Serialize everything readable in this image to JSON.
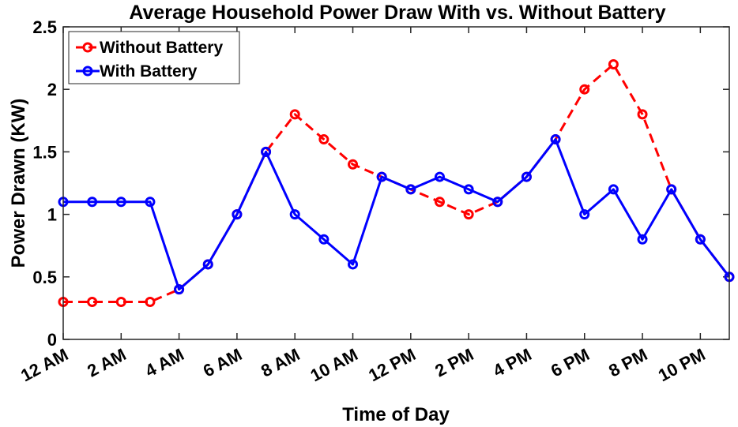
{
  "chart_data": {
    "type": "line",
    "title": "Average Household Power Draw With vs. Without Battery",
    "xlabel": "Time of Day",
    "ylabel": "Power Drawn (KW)",
    "ylim": [
      0,
      2.5
    ],
    "xlim": [
      0,
      23
    ],
    "yticks": [
      "0",
      "0.5",
      "1",
      "1.5",
      "2",
      "2.5"
    ],
    "xtick_positions": [
      0,
      2,
      4,
      6,
      8,
      10,
      12,
      14,
      16,
      18,
      20,
      22
    ],
    "xticks": [
      "12 AM",
      "2 AM",
      "4 AM",
      "6 AM",
      "8 AM",
      "10 AM",
      "12 PM",
      "2 PM",
      "4 PM",
      "6 PM",
      "8 PM",
      "10 PM"
    ],
    "x": [
      0,
      1,
      2,
      3,
      4,
      5,
      6,
      7,
      8,
      9,
      10,
      11,
      12,
      13,
      14,
      15,
      16,
      17,
      18,
      19,
      20,
      21,
      22,
      23
    ],
    "grid": false,
    "legend_position": "top-left",
    "series": [
      {
        "name": "Without Battery",
        "color": "#ff0000",
        "line_style": "dashed",
        "marker": "circle",
        "values": [
          0.3,
          0.3,
          0.3,
          0.3,
          0.4,
          0.6,
          1.0,
          1.5,
          1.8,
          1.6,
          1.4,
          1.3,
          1.2,
          1.1,
          1.0,
          1.1,
          1.3,
          1.6,
          2.0,
          2.2,
          1.8,
          1.2,
          0.8,
          0.5
        ]
      },
      {
        "name": "With Battery",
        "color": "#0000ff",
        "line_style": "solid",
        "marker": "circle",
        "values": [
          1.1,
          1.1,
          1.1,
          1.1,
          0.4,
          0.6,
          1.0,
          1.5,
          1.0,
          0.8,
          0.6,
          1.3,
          1.2,
          1.3,
          1.2,
          1.1,
          1.3,
          1.6,
          1.0,
          1.2,
          0.8,
          1.2,
          0.8,
          0.5
        ]
      }
    ]
  }
}
